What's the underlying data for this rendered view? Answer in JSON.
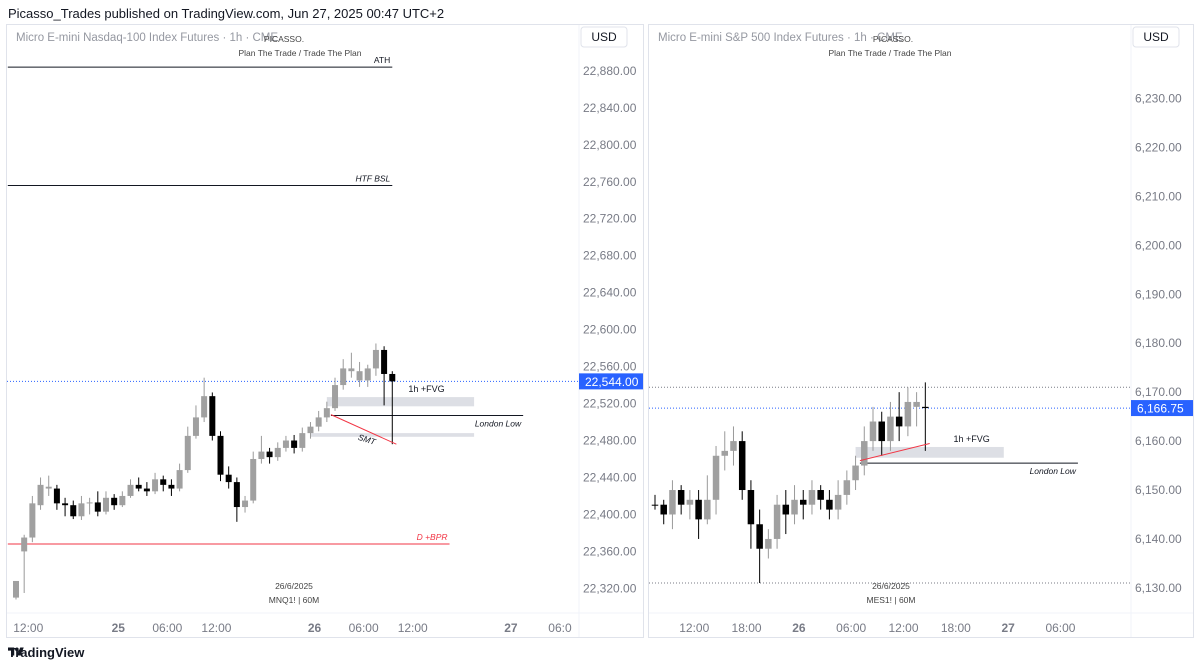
{
  "header": {
    "text": "Picasso_Trades published on TradingView.com, Jun 27, 2025 00:47 UTC+2"
  },
  "footer": {
    "brand": "TradingView",
    "logo_icon": "tradingview-logo-icon"
  },
  "chart_data": [
    {
      "type": "candlestick",
      "title": "Micro E-mini Nasdaq-100 Index Futures · 1h · CME",
      "watermark": "PICASSO.",
      "subtitle": "Plan The Trade / Trade The Plan",
      "currency": "USD",
      "y_ticks": [
        "22,880.00",
        "22,840.00",
        "22,800.00",
        "22,760.00",
        "22,720.00",
        "22,680.00",
        "22,640.00",
        "22,600.00",
        "22,560.00",
        "22,520.00",
        "22,480.00",
        "22,440.00",
        "22,400.00",
        "22,360.00",
        "22,320.00"
      ],
      "y_tick_values": [
        22880,
        22840,
        22800,
        22760,
        22720,
        22680,
        22640,
        22600,
        22560,
        22520,
        22480,
        22440,
        22400,
        22360,
        22320
      ],
      "ylim": [
        22302,
        22895
      ],
      "x_ticks": [
        {
          "label": "12:00",
          "bar": 1.5,
          "bold": false
        },
        {
          "label": "25",
          "bar": 12.5,
          "bold": true
        },
        {
          "label": "06:00",
          "bar": 18.5,
          "bold": false
        },
        {
          "label": "12:00",
          "bar": 24.5,
          "bold": false
        },
        {
          "label": "26",
          "bar": 36.5,
          "bold": true
        },
        {
          "label": "06:00",
          "bar": 42.5,
          "bold": false
        },
        {
          "label": "12:00",
          "bar": 48.5,
          "bold": false
        },
        {
          "label": "27",
          "bar": 60.5,
          "bold": true
        },
        {
          "label": "06:0",
          "bar": 66.5,
          "bold": false
        }
      ],
      "last_price": "22,544.00",
      "last_value": 22544,
      "bottom_label_date": "26/6/2025",
      "bottom_label_symbol": "MNQ1! | 60M",
      "levels": [
        {
          "label": "ATH",
          "value": 22884,
          "x1": -1,
          "x2": 46,
          "color": "#131722",
          "italic": false
        },
        {
          "label": "HTF BSL",
          "value": 22756,
          "x1": -1,
          "x2": 46,
          "color": "#131722",
          "italic": true
        },
        {
          "label": "D +BPR",
          "value": 22368,
          "x1": -1,
          "x2": 53,
          "color": "#f23645",
          "italic": true
        },
        {
          "label": "London Low",
          "value": 22507,
          "x1": 38.5,
          "x2": 62,
          "color": "#131722",
          "italic": true
        }
      ],
      "zones": [
        {
          "label": "1h +FVG",
          "from": 22517,
          "to": 22527,
          "x1": 38,
          "x2": 56
        },
        {
          "label": "",
          "from": 22484,
          "to": 22488,
          "x1": 36,
          "x2": 56
        }
      ],
      "smt": {
        "label": "SMT",
        "p1": [
          38.5,
          22508
        ],
        "p2": [
          46.5,
          22476
        ]
      },
      "candles": [
        [
          22328,
          22310,
          22315,
          22308,
          "gray"
        ],
        [
          22360,
          22375,
          22378,
          22315,
          "gray"
        ],
        [
          22375,
          22412,
          22420,
          22370,
          "gray"
        ],
        [
          22410,
          22432,
          22440,
          22405,
          "gray"
        ],
        [
          22430,
          22428,
          22442,
          22420,
          "gray"
        ],
        [
          22428,
          22412,
          22432,
          22405,
          "black"
        ],
        [
          22412,
          22410,
          22418,
          22398,
          "black"
        ],
        [
          22410,
          22398,
          22415,
          22395,
          "black"
        ],
        [
          22398,
          22412,
          22420,
          22394,
          "gray"
        ],
        [
          22412,
          22413,
          22418,
          22400,
          "gray"
        ],
        [
          22413,
          22403,
          22425,
          22398,
          "black"
        ],
        [
          22403,
          22418,
          22425,
          22400,
          "gray"
        ],
        [
          22418,
          22410,
          22422,
          22405,
          "black"
        ],
        [
          22410,
          22420,
          22425,
          22408,
          "gray"
        ],
        [
          22420,
          22432,
          22438,
          22418,
          "gray"
        ],
        [
          22432,
          22428,
          22440,
          22425,
          "black"
        ],
        [
          22428,
          22425,
          22435,
          22420,
          "black"
        ],
        [
          22425,
          22438,
          22445,
          22422,
          "gray"
        ],
        [
          22438,
          22432,
          22442,
          22425,
          "black"
        ],
        [
          22432,
          22428,
          22438,
          22420,
          "black"
        ],
        [
          22428,
          22448,
          22455,
          22425,
          "gray"
        ],
        [
          22448,
          22485,
          22495,
          22445,
          "gray"
        ],
        [
          22485,
          22505,
          22518,
          22482,
          "gray"
        ],
        [
          22505,
          22528,
          22548,
          22500,
          "gray"
        ],
        [
          22528,
          22485,
          22532,
          22480,
          "black"
        ],
        [
          22485,
          22443,
          22490,
          22436,
          "black"
        ],
        [
          22443,
          22435,
          22452,
          22428,
          "black"
        ],
        [
          22435,
          22408,
          22440,
          22392,
          "black"
        ],
        [
          22408,
          22415,
          22420,
          22402,
          "gray"
        ],
        [
          22415,
          22460,
          22468,
          22412,
          "gray"
        ],
        [
          22460,
          22468,
          22485,
          22455,
          "gray"
        ],
        [
          22468,
          22462,
          22472,
          22455,
          "black"
        ],
        [
          22462,
          22472,
          22478,
          22458,
          "gray"
        ],
        [
          22472,
          22480,
          22485,
          22468,
          "gray"
        ],
        [
          22480,
          22472,
          22486,
          22466,
          "black"
        ],
        [
          22472,
          22488,
          22494,
          22468,
          "gray"
        ],
        [
          22488,
          22495,
          22500,
          22482,
          "gray"
        ],
        [
          22495,
          22505,
          22512,
          22490,
          "gray"
        ],
        [
          22505,
          22515,
          22522,
          22500,
          "gray"
        ],
        [
          22515,
          22540,
          22548,
          22512,
          "gray"
        ],
        [
          22540,
          22558,
          22568,
          22535,
          "gray"
        ],
        [
          22558,
          22555,
          22575,
          22548,
          "gray"
        ],
        [
          22555,
          22545,
          22565,
          22538,
          "gray"
        ],
        [
          22545,
          22558,
          22562,
          22538,
          "gray"
        ],
        [
          22558,
          22578,
          22585,
          22550,
          "gray"
        ],
        [
          22578,
          22552,
          22582,
          22518,
          "black"
        ],
        [
          22552,
          22544,
          22555,
          22476,
          "black"
        ]
      ]
    },
    {
      "type": "candlestick",
      "title": "Micro E-mini S&P 500 Index Futures · 1h · CME",
      "watermark": "PICASSO.",
      "subtitle": "Plan The Trade / Trade The Plan",
      "currency": "USD",
      "y_ticks": [
        "6,230.00",
        "6,220.00",
        "6,210.00",
        "6,200.00",
        "6,190.00",
        "6,180.00",
        "6,170.00",
        "6,160.00",
        "6,150.00",
        "6,140.00",
        "6,130.00"
      ],
      "y_tick_values": [
        6230,
        6220,
        6210,
        6200,
        6190,
        6180,
        6170,
        6160,
        6150,
        6140,
        6130
      ],
      "ylim": [
        6126.5,
        6238.5
      ],
      "x_ticks": [
        {
          "label": "12:00",
          "bar": 4.5,
          "bold": false
        },
        {
          "label": "18:00",
          "bar": 10.5,
          "bold": false
        },
        {
          "label": "26",
          "bar": 16.5,
          "bold": true
        },
        {
          "label": "06:00",
          "bar": 22.5,
          "bold": false
        },
        {
          "label": "12:00",
          "bar": 28.5,
          "bold": false
        },
        {
          "label": "18:00",
          "bar": 34.5,
          "bold": false
        },
        {
          "label": "27",
          "bar": 40.5,
          "bold": true
        },
        {
          "label": "06:00",
          "bar": 46.5,
          "bold": false
        }
      ],
      "last_price": "6,166.75",
      "last_value": 6166.75,
      "bottom_label_date": "26/6/2025",
      "bottom_label_symbol": "MES1! | 60M",
      "dotted_levels": [
        6171,
        6131
      ],
      "levels": [
        {
          "label": "London Low",
          "value": 6155.5,
          "x1": 23.5,
          "x2": 48.5,
          "color": "#131722",
          "italic": true
        }
      ],
      "zones": [
        {
          "label": "1h +FVG",
          "from": 6156.6,
          "to": 6158.8,
          "x1": 23,
          "x2": 40
        }
      ],
      "smt": {
        "label": "",
        "p1": [
          23.5,
          6156
        ],
        "p2": [
          31.5,
          6159.5
        ]
      },
      "candles": [
        [
          6147,
          6147,
          6149,
          6146,
          "black"
        ],
        [
          6147,
          6145,
          6148,
          6143,
          "black"
        ],
        [
          6145,
          6150,
          6152,
          6142,
          "gray"
        ],
        [
          6150,
          6147,
          6151,
          6145,
          "black"
        ],
        [
          6147,
          6148,
          6150,
          6144,
          "gray"
        ],
        [
          6148,
          6144,
          6150,
          6140,
          "black"
        ],
        [
          6144,
          6148,
          6153,
          6143,
          "gray"
        ],
        [
          6148,
          6157,
          6159,
          6145,
          "gray"
        ],
        [
          6157,
          6158,
          6162,
          6154,
          "gray"
        ],
        [
          6158,
          6160,
          6163,
          6155,
          "gray"
        ],
        [
          6160,
          6150,
          6162,
          6148,
          "black"
        ],
        [
          6150,
          6143,
          6152,
          6138,
          "black"
        ],
        [
          6143,
          6138,
          6146,
          6131,
          "black"
        ],
        [
          6138,
          6140,
          6142,
          6136,
          "gray"
        ],
        [
          6140,
          6147,
          6149,
          6138,
          "gray"
        ],
        [
          6147,
          6145,
          6150,
          6141,
          "black"
        ],
        [
          6145,
          6148,
          6151,
          6143,
          "gray"
        ],
        [
          6148,
          6147,
          6150,
          6144,
          "black"
        ],
        [
          6147,
          6150,
          6152,
          6145,
          "gray"
        ],
        [
          6150,
          6148,
          6151,
          6146,
          "black"
        ],
        [
          6148,
          6146,
          6150,
          6144,
          "black"
        ],
        [
          6146,
          6149,
          6152,
          6144,
          "gray"
        ],
        [
          6149,
          6152,
          6154,
          6147,
          "gray"
        ],
        [
          6152,
          6155,
          6157,
          6150,
          "gray"
        ],
        [
          6155,
          6160,
          6163,
          6153,
          "gray"
        ],
        [
          6160,
          6164,
          6167,
          6158,
          "gray"
        ],
        [
          6164,
          6160,
          6166,
          6157,
          "black"
        ],
        [
          6160,
          6165,
          6168,
          6158,
          "gray"
        ],
        [
          6165,
          6163,
          6170,
          6160,
          "black"
        ],
        [
          6163,
          6168,
          6171,
          6161,
          "gray"
        ],
        [
          6168,
          6167,
          6170,
          6163,
          "gray"
        ],
        [
          6167,
          6166.75,
          6172,
          6158,
          "black"
        ]
      ]
    }
  ]
}
